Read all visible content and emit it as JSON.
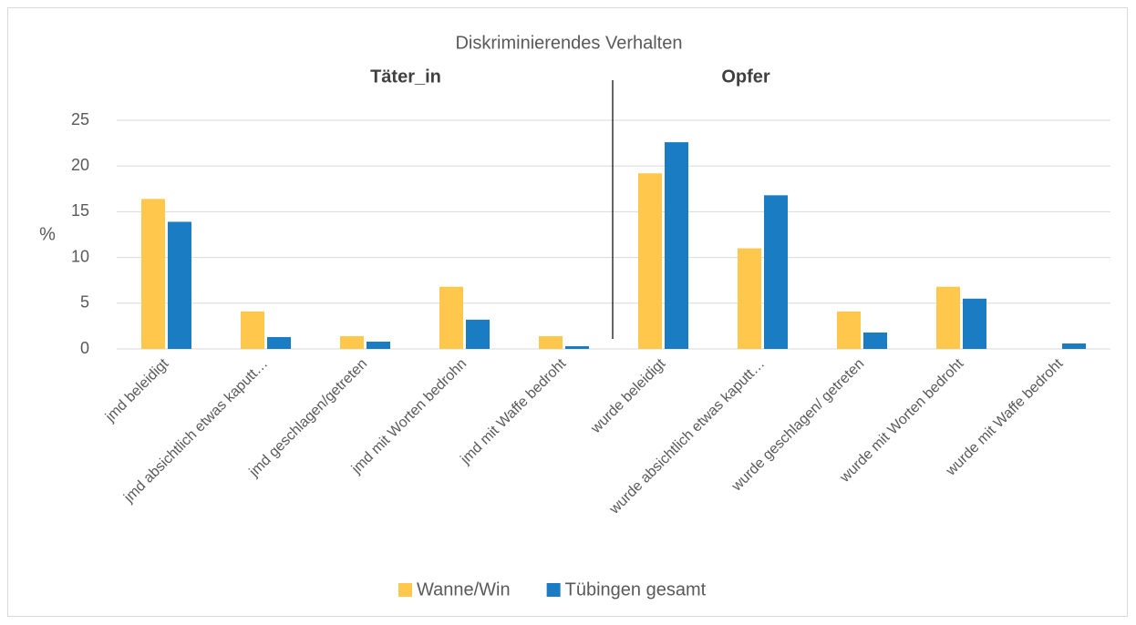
{
  "chart_data": {
    "type": "bar",
    "title": "Diskriminierendes Verhalten",
    "annotations": [
      "Täter_in",
      "Opfer"
    ],
    "y_label": "%",
    "categories": [
      "jmd beleidigt",
      "jmd absichtlich etwas kaputt…",
      "jmd geschlagen/getreten",
      "jmd mit Worten bedrohn",
      "jmd mit Waffe bedroht",
      "wurde beleidigt",
      "wurde absichtlich etwas kaputt…",
      "wurde geschlagen/ getreten",
      "wurde mit Worten bedroht",
      "wurde mit Waffe bedroht"
    ],
    "series": [
      {
        "name": "Wanne/Win",
        "color": "#ffc84d",
        "values": [
          16.4,
          4.1,
          1.4,
          6.8,
          1.4,
          19.2,
          11.0,
          4.1,
          6.8,
          0
        ]
      },
      {
        "name": "Tübingen gesamt",
        "color": "#1a7dc4",
        "values": [
          13.9,
          1.3,
          0.8,
          3.2,
          0.3,
          22.6,
          16.8,
          1.8,
          5.5,
          0.6
        ]
      }
    ],
    "ylim": [
      0,
      25
    ],
    "yticks": [
      0,
      5,
      10,
      15,
      20,
      25
    ],
    "grid": true,
    "legend": "bottom"
  }
}
